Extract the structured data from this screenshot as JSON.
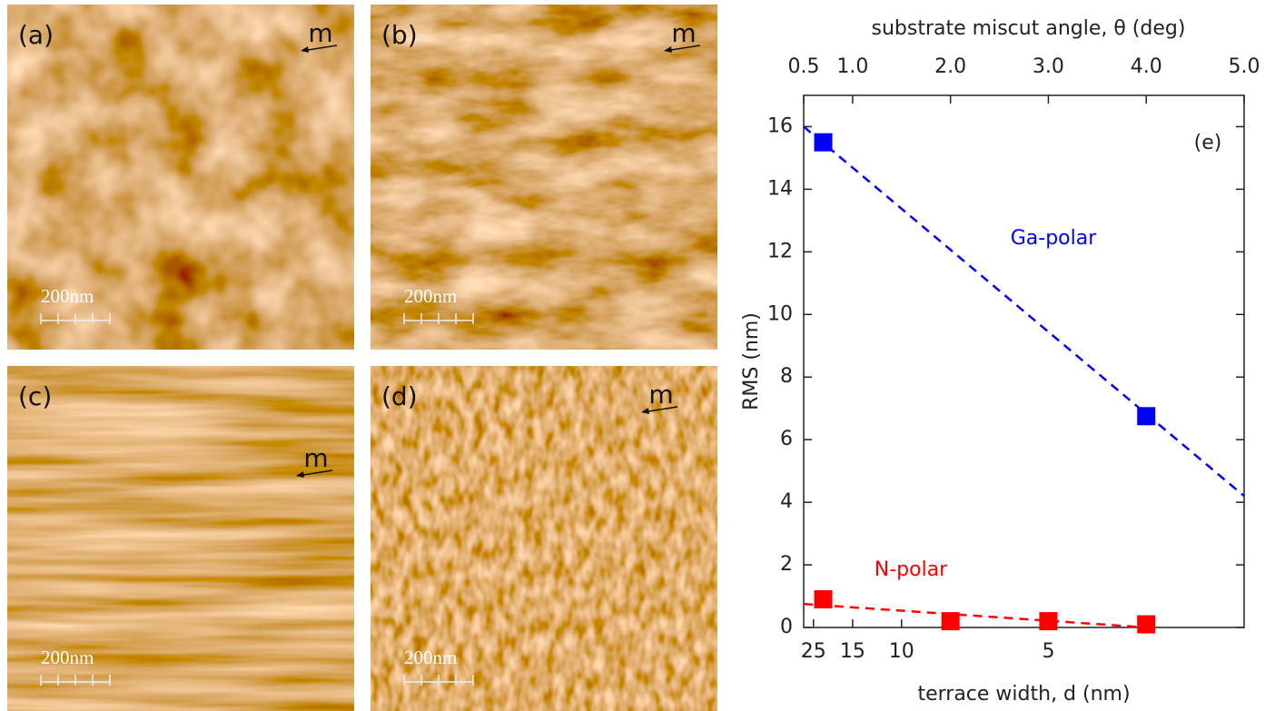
{
  "panels": [
    {
      "label": "(a)",
      "arrow_label": "m",
      "scale_bar": "200nm"
    },
    {
      "label": "(b)",
      "arrow_label": "m",
      "scale_bar": "200nm"
    },
    {
      "label": "(c)",
      "arrow_label": "m",
      "scale_bar": "200nm"
    },
    {
      "label": "(d)",
      "arrow_label": "m",
      "scale_bar": "200nm"
    }
  ],
  "chart_data": {
    "type": "scatter",
    "panel_label": "(e)",
    "x_label_top": "substrate miscut angle, θ (deg)",
    "x_label_bottom": "terrace width, d (nm)",
    "y_label": "RMS (nm)",
    "xlim": [
      0.5,
      5.0
    ],
    "xticks": [
      {
        "value": 0.5,
        "label": "0.5"
      },
      {
        "value": 1.0,
        "label": "1.0"
      },
      {
        "value": 2.0,
        "label": "2.0"
      },
      {
        "value": 3.0,
        "label": "3.0"
      },
      {
        "value": 4.0,
        "label": "4.0"
      },
      {
        "value": 5.0,
        "label": "5.0"
      }
    ],
    "x2lim": [
      30,
      3
    ],
    "x2scale": "reciprocal",
    "x2ticks": [
      25,
      15,
      10,
      5
    ],
    "ylim": [
      0,
      17
    ],
    "yticks": [
      0,
      2,
      4,
      6,
      8,
      10,
      12,
      14,
      16
    ],
    "series": [
      {
        "name": "Ga-polar",
        "color": "#0000ff",
        "x": [
          0.7,
          4.0
        ],
        "values": [
          15.5,
          6.75
        ],
        "fit": {
          "x": [
            0.5,
            5.0
          ],
          "values": [
            16.0,
            4.2
          ]
        }
      },
      {
        "name": "N-polar",
        "color": "#ff0000",
        "x": [
          0.7,
          2.0,
          3.0,
          4.0
        ],
        "values": [
          0.9,
          0.2,
          0.2,
          0.1
        ],
        "fit": {
          "x": [
            0.5,
            4.0
          ],
          "values": [
            0.75,
            0.0
          ]
        }
      }
    ]
  }
}
